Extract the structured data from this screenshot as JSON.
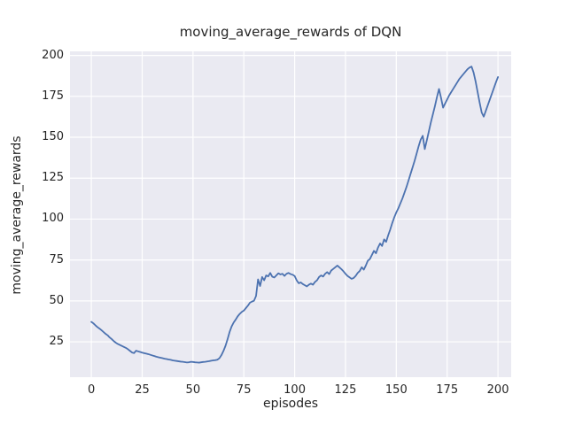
{
  "chart_data": {
    "type": "line",
    "title": "moving_average_rewards of DQN",
    "xlabel": "episodes",
    "ylabel": "moving_average_rewards",
    "x_ticks": [
      0,
      25,
      50,
      75,
      100,
      125,
      150,
      175,
      200
    ],
    "y_ticks": [
      25,
      50,
      75,
      100,
      125,
      150,
      175,
      200
    ],
    "xlim": [
      -10.5,
      206.5
    ],
    "ylim": [
      3.4,
      202.5
    ],
    "grid": true,
    "legend": "none",
    "style": "seaborn-darkgrid",
    "colors": {
      "line": "#4C72B0",
      "axes_background": "#EAEAF2",
      "grid": "#FFFFFF",
      "text": "#262626",
      "figure_background": "#FFFFFF"
    },
    "series": [
      {
        "name": "DQN moving_average_rewards",
        "x": [
          0,
          1,
          2,
          3,
          4,
          5,
          6,
          7,
          8,
          9,
          10,
          11,
          12,
          13,
          14,
          15,
          16,
          17,
          18,
          19,
          20,
          21,
          22,
          23,
          24,
          25,
          26,
          27,
          28,
          29,
          30,
          31,
          32,
          33,
          34,
          35,
          36,
          37,
          38,
          39,
          40,
          41,
          42,
          43,
          44,
          45,
          46,
          47,
          48,
          49,
          50,
          51,
          52,
          53,
          54,
          55,
          56,
          57,
          58,
          59,
          60,
          61,
          62,
          63,
          64,
          65,
          66,
          67,
          68,
          69,
          70,
          71,
          72,
          73,
          74,
          75,
          76,
          77,
          78,
          79,
          80,
          81,
          82,
          83,
          84,
          85,
          86,
          87,
          88,
          89,
          90,
          91,
          92,
          93,
          94,
          95,
          96,
          97,
          98,
          99,
          100,
          101,
          102,
          103,
          104,
          105,
          106,
          107,
          108,
          109,
          110,
          111,
          112,
          113,
          114,
          115,
          116,
          117,
          118,
          119,
          120,
          121,
          122,
          123,
          124,
          125,
          126,
          127,
          128,
          129,
          130,
          131,
          132,
          133,
          134,
          135,
          136,
          137,
          138,
          139,
          140,
          141,
          142,
          143,
          144,
          145,
          146,
          147,
          148,
          149,
          150,
          151,
          152,
          153,
          154,
          155,
          156,
          157,
          158,
          159,
          160,
          161,
          162,
          163,
          164,
          165,
          166,
          167,
          168,
          169,
          170,
          171,
          172,
          173,
          174,
          175,
          176,
          177,
          178,
          179,
          180,
          181,
          182,
          183,
          184,
          185,
          186,
          187,
          188,
          189,
          190,
          191,
          192,
          193,
          194,
          195,
          196,
          197,
          198,
          199,
          200
        ],
        "y": [
          37.2,
          36.3,
          35.1,
          34.0,
          33.1,
          32.1,
          31.0,
          29.9,
          29.0,
          27.7,
          26.7,
          25.5,
          24.5,
          23.7,
          23.1,
          22.5,
          21.9,
          21.3,
          20.5,
          19.5,
          18.5,
          18.1,
          19.6,
          19.2,
          18.8,
          18.4,
          18.1,
          17.8,
          17.5,
          17.1,
          16.7,
          16.3,
          15.9,
          15.6,
          15.3,
          15.0,
          14.7,
          14.5,
          14.2,
          14.0,
          13.7,
          13.5,
          13.3,
          13.1,
          12.9,
          12.8,
          12.6,
          12.4,
          12.5,
          12.8,
          12.7,
          12.5,
          12.4,
          12.3,
          12.5,
          12.7,
          12.8,
          13.0,
          13.2,
          13.5,
          13.7,
          13.8,
          14.1,
          15.0,
          16.9,
          19.5,
          22.6,
          26.6,
          31.0,
          34.4,
          36.8,
          38.6,
          40.6,
          42.1,
          43.3,
          44.1,
          45.6,
          47.1,
          48.9,
          49.6,
          50.1,
          53.0,
          63.2,
          59.1,
          64.6,
          62.6,
          65.6,
          65.0,
          67.1,
          64.8,
          64.3,
          65.6,
          66.9,
          66.2,
          66.6,
          65.3,
          66.6,
          67.1,
          66.4,
          66.0,
          65.2,
          62.6,
          60.8,
          61.3,
          60.3,
          59.6,
          58.9,
          59.9,
          60.6,
          59.9,
          61.6,
          62.6,
          64.6,
          65.6,
          64.9,
          66.6,
          67.6,
          66.4,
          68.6,
          69.6,
          70.6,
          71.6,
          70.5,
          69.4,
          68.1,
          66.6,
          65.3,
          64.4,
          63.5,
          64.0,
          65.3,
          67.1,
          68.3,
          70.6,
          69.1,
          71.6,
          74.6,
          75.6,
          78.1,
          80.6,
          79.1,
          82.6,
          85.1,
          83.6,
          87.6,
          86.1,
          90.1,
          93.6,
          97.6,
          101.1,
          104.1,
          106.6,
          109.6,
          112.6,
          116.1,
          119.6,
          123.6,
          127.6,
          131.6,
          135.6,
          140.1,
          144.6,
          148.6,
          150.9,
          142.8,
          148.1,
          153.6,
          159.1,
          164.1,
          169.1,
          174.6,
          179.5,
          174.1,
          168.1,
          170.6,
          173.1,
          175.6,
          177.6,
          179.6,
          181.6,
          183.6,
          185.6,
          187.1,
          188.6,
          190.1,
          191.6,
          192.6,
          193.2,
          189.6,
          184.1,
          177.6,
          171.1,
          165.1,
          162.6,
          166.1,
          169.6,
          173.1,
          176.6,
          180.1,
          183.6,
          186.8
        ]
      }
    ]
  }
}
